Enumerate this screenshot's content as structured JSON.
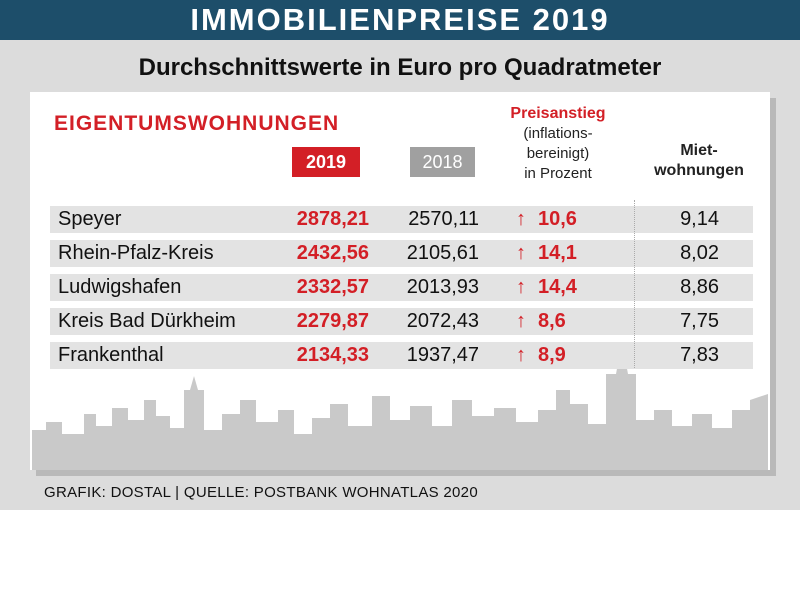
{
  "header": {
    "title": "IMMOBILIENPREISE 2019"
  },
  "subtitle": "Durchschnittswerte in Euro pro Quadratmeter",
  "section_title": "EIGENTUMSWOHNUNGEN",
  "columns": {
    "year_current": "2019",
    "year_previous": "2018",
    "increase_line1": "Preisanstieg",
    "increase_line2": "(inflations-",
    "increase_line3": "bereinigt)",
    "increase_line4": "in Prozent",
    "rent_line1": "Miet-",
    "rent_line2": "wohnungen"
  },
  "arrow_glyph": "↑",
  "footer": "GRAFIK: DOSTAL | QUELLE: POSTBANK WOHNATLAS 2020",
  "colors": {
    "header": "#1d4e6a",
    "accent_red": "#d31f26",
    "badge_grey": "#a0a0a0",
    "row_bg": "#e3e3e3",
    "background": "#dcdcdc"
  },
  "chart_data": {
    "type": "table",
    "columns": [
      "",
      "2019",
      "2018",
      "Preisanstieg (inflationsbereinigt) in Prozent",
      "Mietwohnungen"
    ],
    "rows": [
      {
        "city": "Speyer",
        "v2019": "2878,21",
        "v2018": "2570,11",
        "increase": "10,6",
        "rent": "9,14"
      },
      {
        "city": "Rhein-Pfalz-Kreis",
        "v2019": "2432,56",
        "v2018": "2105,61",
        "increase": "14,1",
        "rent": "8,02"
      },
      {
        "city": "Ludwigshafen",
        "v2019": "2332,57",
        "v2018": "2013,93",
        "increase": "14,4",
        "rent": "8,86"
      },
      {
        "city": "Kreis Bad Dürkheim",
        "v2019": "2279,87",
        "v2018": "2072,43",
        "increase": "8,6",
        "rent": "7,75"
      },
      {
        "city": "Frankenthal",
        "v2019": "2134,33",
        "v2018": "1937,47",
        "increase": "8,9",
        "rent": "7,83"
      }
    ]
  }
}
